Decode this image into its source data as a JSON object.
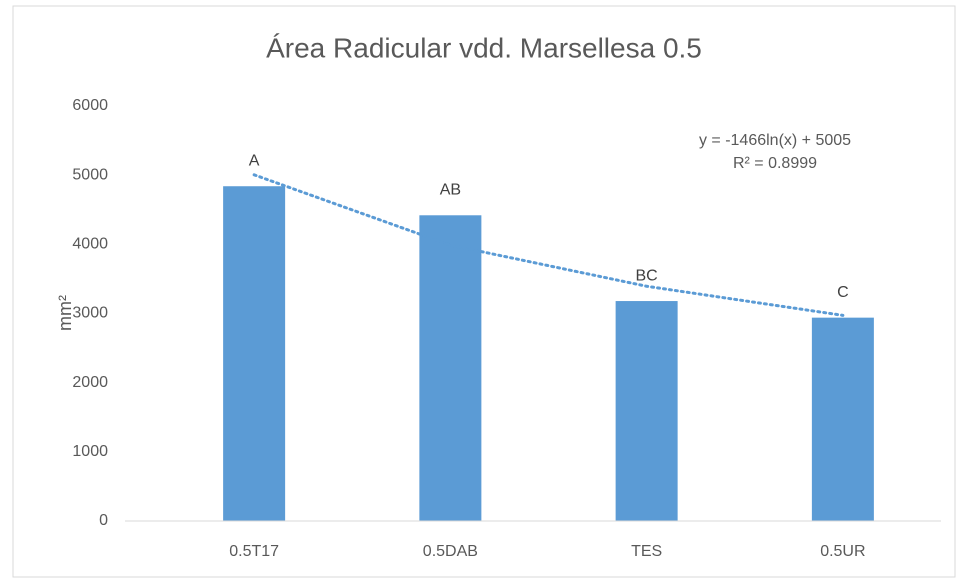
{
  "chart_data": {
    "type": "bar",
    "title": "Área Radicular vdd. Marsellesa 0.5",
    "y_label": "mm²",
    "categories": [
      "0.5T17",
      "0.5DAB",
      "TES",
      "0.5UR"
    ],
    "values": [
      4840,
      4420,
      3180,
      2940
    ],
    "value_labels": [
      "A",
      "AB",
      "BC",
      "C"
    ],
    "color": "#5b9bd5",
    "ylim": [
      0,
      6000
    ],
    "yticks": [
      0,
      1000,
      2000,
      3000,
      4000,
      5000,
      6000
    ],
    "grid": false,
    "trendline": {
      "type": "log",
      "color": "#5b9bd5",
      "equation": "y = -1466ln(x) + 5005",
      "r_squared": "R² = 0.8999",
      "values": [
        5005,
        3989,
        3394,
        2973
      ]
    }
  }
}
